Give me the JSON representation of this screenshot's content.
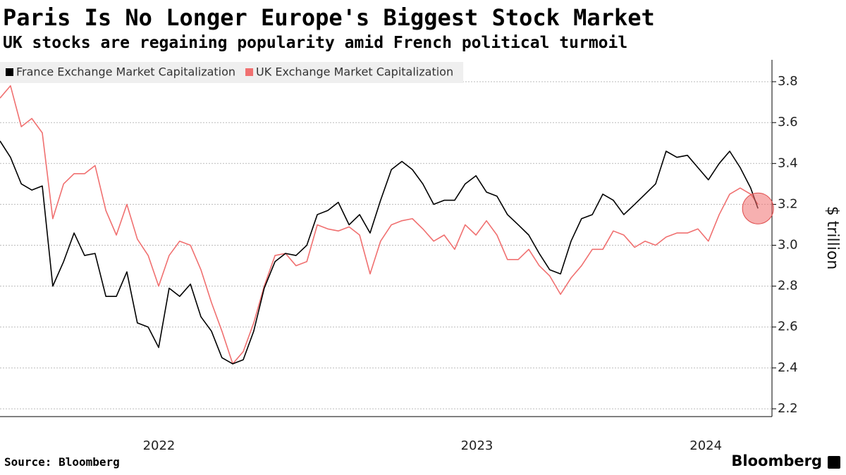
{
  "chart_data": {
    "type": "line",
    "title": "Paris Is No Longer Europe's Biggest Stock Market",
    "subtitle": "UK stocks are regaining popularity amid French political turmoil",
    "y_axis_label": "$ trillion",
    "source": "Source: Bloomberg",
    "brand": "Bloomberg",
    "legend": "top-left",
    "grid": true,
    "xlim": [
      2022.0,
      2024.428
    ],
    "ylim": [
      2.162,
      3.907
    ],
    "xticks": [
      {
        "value": 2022.5,
        "label": "2022"
      },
      {
        "value": 2023.5,
        "label": "2023"
      },
      {
        "value": 2024.22,
        "label": "2024"
      }
    ],
    "yticks": [
      2.2,
      2.4,
      2.6,
      2.8,
      {
        "value": 3.0,
        "label": "3.0"
      },
      3.2,
      3.4,
      3.6,
      3.8
    ],
    "x": [
      2022.0,
      2022.033,
      2022.067,
      2022.1,
      2022.133,
      2022.166,
      2022.2,
      2022.233,
      2022.266,
      2022.299,
      2022.333,
      2022.366,
      2022.399,
      2022.432,
      2022.466,
      2022.499,
      2022.532,
      2022.565,
      2022.599,
      2022.632,
      2022.665,
      2022.698,
      2022.732,
      2022.765,
      2022.798,
      2022.831,
      2022.865,
      2022.898,
      2022.931,
      2022.965,
      2022.998,
      2023.031,
      2023.064,
      2023.098,
      2023.131,
      2023.164,
      2023.197,
      2023.231,
      2023.264,
      2023.297,
      2023.33,
      2023.364,
      2023.397,
      2023.43,
      2023.463,
      2023.497,
      2023.53,
      2023.563,
      2023.596,
      2023.63,
      2023.663,
      2023.696,
      2023.729,
      2023.763,
      2023.796,
      2023.829,
      2023.863,
      2023.896,
      2023.929,
      2023.962,
      2023.996,
      2024.029,
      2024.062,
      2024.095,
      2024.129,
      2024.162,
      2024.195,
      2024.228,
      2024.262,
      2024.295,
      2024.328,
      2024.361,
      2024.384
    ],
    "series": [
      {
        "name": "France Exchange Market Capitalization",
        "color": "#000000",
        "values": [
          3.51,
          3.43,
          3.3,
          3.27,
          3.29,
          2.8,
          2.92,
          3.06,
          2.95,
          2.96,
          2.75,
          2.75,
          2.87,
          2.62,
          2.6,
          2.5,
          2.79,
          2.75,
          2.81,
          2.65,
          2.58,
          2.45,
          2.42,
          2.44,
          2.58,
          2.79,
          2.92,
          2.96,
          2.95,
          3.0,
          3.15,
          3.17,
          3.21,
          3.1,
          3.15,
          3.06,
          3.22,
          3.37,
          3.41,
          3.37,
          3.3,
          3.2,
          3.22,
          3.22,
          3.3,
          3.34,
          3.26,
          3.24,
          3.15,
          3.1,
          3.05,
          2.96,
          2.88,
          2.86,
          3.02,
          3.13,
          3.15,
          3.25,
          3.22,
          3.15,
          3.2,
          3.25,
          3.3,
          3.46,
          3.43,
          3.44,
          3.38,
          3.32,
          3.4,
          3.46,
          3.38,
          3.28,
          3.18
        ]
      },
      {
        "name": "UK Exchange Market Capitalization",
        "color": "#f07070",
        "values": [
          3.72,
          3.78,
          3.58,
          3.62,
          3.55,
          3.13,
          3.3,
          3.35,
          3.35,
          3.39,
          3.17,
          3.05,
          3.2,
          3.03,
          2.95,
          2.8,
          2.95,
          3.02,
          3.0,
          2.88,
          2.72,
          2.58,
          2.42,
          2.48,
          2.62,
          2.8,
          2.95,
          2.96,
          2.9,
          2.92,
          3.1,
          3.08,
          3.07,
          3.09,
          3.05,
          2.86,
          3.02,
          3.1,
          3.12,
          3.13,
          3.08,
          3.02,
          3.05,
          2.98,
          3.1,
          3.05,
          3.12,
          3.05,
          2.93,
          2.93,
          2.98,
          2.9,
          2.85,
          2.76,
          2.84,
          2.9,
          2.98,
          2.98,
          3.07,
          3.05,
          2.99,
          3.02,
          3.0,
          3.04,
          3.06,
          3.06,
          3.08,
          3.02,
          3.15,
          3.25,
          3.28,
          3.25,
          3.2
        ]
      }
    ]
  }
}
